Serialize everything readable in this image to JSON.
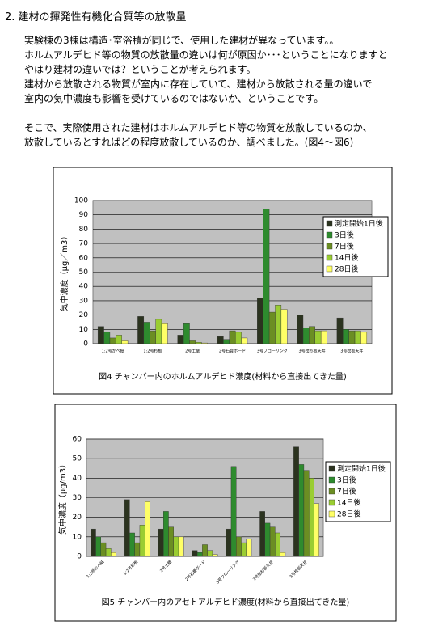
{
  "heading": "2. 建材の揮発性有機化合質等の放散量",
  "paragraph_1": [
    "実験棟の3棟は構造･室浴積が同じで、使用した建材が異なっています。。",
    "ホルムアルデヒド等の物質の放散量の違いは何が原因か･･･ということになりますと",
    "やはり建材の違いでは？ということが考えられます。",
    "建材から放散される物質が室内に存在していて、建材から放散される量の違いで",
    "室内の気中濃度も影響を受けているのではないか、ということです。"
  ],
  "paragraph_2": [
    "そこで、実際使用された建材はホルムアルデヒド等の物質を放散しているのか、",
    "放散しているとすればどの程度放散しているのか、調べました。(図4～図6)"
  ],
  "chart_data": [
    {
      "type": "bar",
      "title": "図4  チャンバー内のホルムアルデヒド濃度(材料から直接出てきた量)",
      "y_label": "気中濃度（μg／m3）",
      "categories": [
        "1:2号かべ紙",
        "1:2号杉板",
        "2号土壁",
        "2号石膏ボード",
        "3号フローリング",
        "3号桧杉板天井",
        "3号桧板天井"
      ],
      "series": [
        {
          "name": "測定開始1日後",
          "color": "#2b331f",
          "values": [
            12,
            19,
            6,
            5,
            32,
            20,
            18
          ]
        },
        {
          "name": "3日後",
          "color": "#2e8b2e",
          "values": [
            8,
            15,
            14,
            3,
            94,
            11,
            10
          ]
        },
        {
          "name": "7日後",
          "color": "#6b8e23",
          "values": [
            4,
            9,
            2,
            9,
            22,
            12,
            9
          ]
        },
        {
          "name": "14日後",
          "color": "#9acd32",
          "values": [
            6,
            17,
            1,
            8,
            27,
            9,
            9
          ]
        },
        {
          "name": "28日後",
          "color": "#ffff66",
          "values": [
            2,
            14,
            0.5,
            4,
            24,
            9,
            8
          ]
        }
      ],
      "ylim": [
        0,
        100
      ],
      "yticks": [
        0,
        10,
        20,
        30,
        40,
        50,
        60,
        70,
        80,
        90,
        100
      ],
      "grid": true,
      "legend": "right"
    },
    {
      "type": "bar",
      "title": "図5  チャンバー内のアセトアルデヒド濃度(材料から直接出てきた量)",
      "y_label": "気中濃度（μg/m3）",
      "categories": [
        "1:2号かべ紙",
        "1:2号杉板",
        "2号土壁",
        "2号石膏ボード",
        "3号フローリング",
        "3号桧杉板天井",
        "3号桧板天井"
      ],
      "series": [
        {
          "name": "測定開始1日後",
          "color": "#2b331f",
          "values": [
            14,
            29,
            14,
            3,
            14,
            23,
            56
          ]
        },
        {
          "name": "3日後",
          "color": "#2e8b2e",
          "values": [
            10,
            12,
            23,
            2,
            46,
            17,
            47
          ]
        },
        {
          "name": "7日後",
          "color": "#6b8e23",
          "values": [
            7,
            7,
            15,
            6,
            10,
            15,
            44
          ]
        },
        {
          "name": "14日後",
          "color": "#9acd32",
          "values": [
            4,
            16,
            10,
            3,
            7,
            12,
            40
          ]
        },
        {
          "name": "28日後",
          "color": "#ffff66",
          "values": [
            2,
            28,
            10,
            1,
            9,
            2,
            27
          ]
        }
      ],
      "ylim": [
        0,
        60
      ],
      "yticks": [
        0,
        10,
        20,
        30,
        40,
        50,
        60
      ],
      "grid": true,
      "legend": "right"
    }
  ]
}
